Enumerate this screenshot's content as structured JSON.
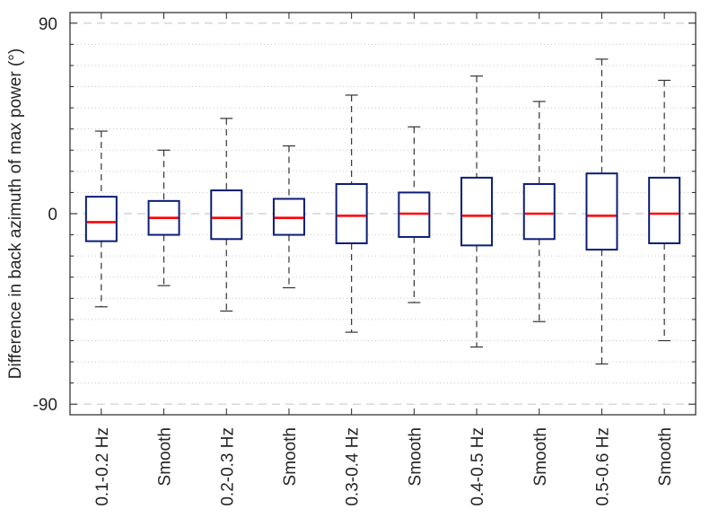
{
  "chart_data": {
    "type": "box",
    "ylabel": "Difference in back azimuth of max power (°)",
    "ylim": [
      -95,
      95
    ],
    "yticks": [
      -90,
      0,
      90
    ],
    "ytick_labels": [
      "-90",
      "0",
      "90"
    ],
    "grid": "minor dotted horizontal, dashed at -90 / 0 / 90",
    "categories": [
      "0.1-0.2 Hz",
      "Smooth",
      "0.2-0.3 Hz",
      "Smooth",
      "0.3-0.4 Hz",
      "Smooth",
      "0.4-0.5 Hz",
      "Smooth",
      "0.5-0.6 Hz",
      "Smooth"
    ],
    "boxes": [
      {
        "whisker_low": -44,
        "q1": -13,
        "median": -4,
        "q3": 8,
        "whisker_high": 39
      },
      {
        "whisker_low": -34,
        "q1": -10,
        "median": -2,
        "q3": 6,
        "whisker_high": 30
      },
      {
        "whisker_low": -46,
        "q1": -12,
        "median": -2,
        "q3": 11,
        "whisker_high": 45
      },
      {
        "whisker_low": -35,
        "q1": -10,
        "median": -2,
        "q3": 7,
        "whisker_high": 32
      },
      {
        "whisker_low": -56,
        "q1": -14,
        "median": -1,
        "q3": 14,
        "whisker_high": 56
      },
      {
        "whisker_low": -42,
        "q1": -11,
        "median": 0,
        "q3": 10,
        "whisker_high": 41
      },
      {
        "whisker_low": -63,
        "q1": -15,
        "median": -1,
        "q3": 17,
        "whisker_high": 65
      },
      {
        "whisker_low": -51,
        "q1": -12,
        "median": 0,
        "q3": 14,
        "whisker_high": 53
      },
      {
        "whisker_low": -71,
        "q1": -17,
        "median": -1,
        "q3": 19,
        "whisker_high": 73
      },
      {
        "whisker_low": -60,
        "q1": -14,
        "median": 0,
        "q3": 17,
        "whisker_high": 63
      }
    ],
    "colors": {
      "box": "#0b1d78",
      "median": "#ff0000",
      "whisker": "#333333",
      "axis": "#262626",
      "grid": "#cccccc"
    }
  }
}
